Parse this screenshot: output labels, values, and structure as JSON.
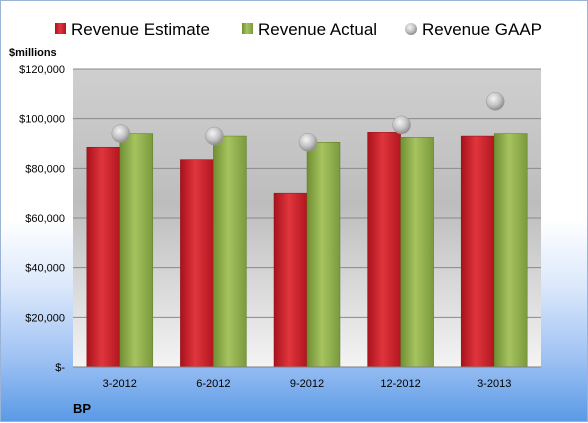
{
  "chart_data": {
    "type": "bar",
    "categories": [
      "3-2012",
      "6-2012",
      "9-2012",
      "12-2012",
      "3-2013"
    ],
    "series": [
      {
        "name": "Revenue Estimate",
        "kind": "bar",
        "color": "#d0202a",
        "values": [
          88500,
          83500,
          70000,
          94500,
          93000
        ]
      },
      {
        "name": "Revenue Actual",
        "kind": "bar",
        "color": "#8fb04a",
        "values": [
          94000,
          93000,
          90500,
          92500,
          94000
        ]
      },
      {
        "name": "Revenue GAAP",
        "kind": "marker",
        "color": "#b8b8b8",
        "values": [
          94000,
          93000,
          90500,
          97500,
          107000
        ]
      }
    ],
    "ylabel": "$millions",
    "ylim": [
      0,
      120000
    ],
    "yticks": [
      0,
      20000,
      40000,
      60000,
      80000,
      100000,
      120000
    ],
    "ytick_labels": [
      "$-",
      "$20,000",
      "$40,000",
      "$60,000",
      "$80,000",
      "$100,000",
      "$120,000"
    ],
    "legend_position": "top",
    "grid": true,
    "company": "BP"
  }
}
